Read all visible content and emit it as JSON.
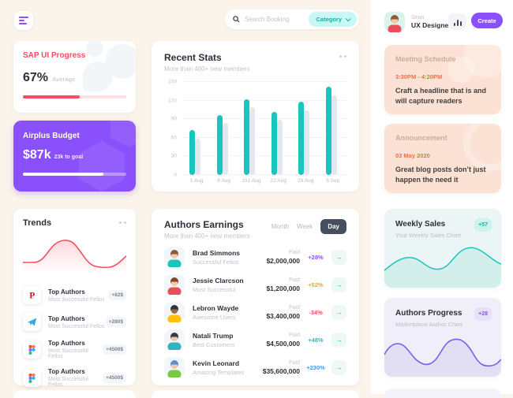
{
  "header": {
    "search": {
      "placeholder": "Search Booking",
      "category_label": "Category"
    },
    "profile": {
      "name": "Sean",
      "role": "UX Designer"
    },
    "create_label": "Create"
  },
  "cards": {
    "sap": {
      "title": "SAP UI Progress",
      "value": "67%",
      "label": "Average",
      "progress_pct": 55,
      "accent": "#f64e60"
    },
    "budget": {
      "title": "Airplus Budget",
      "value": "$87k",
      "label": "23k to goal",
      "progress_pct": 78,
      "accent": "#8950fc"
    }
  },
  "recent": {
    "title": "Recent Stats",
    "subtitle": "More than 400+ new members"
  },
  "chart_data": [
    {
      "type": "bar",
      "title": "Recent Stats",
      "categories": [
        "1 Aug",
        "8 Aug",
        "151 Aug",
        "22 Aug",
        "29 Aug",
        "5 Sep"
      ],
      "series": [
        {
          "name": "current",
          "color": "#1bc5bd",
          "values": [
            72,
            96,
            122,
            102,
            118,
            142
          ]
        },
        {
          "name": "previous",
          "color": "#e5e7ee",
          "values": [
            58,
            84,
            109,
            89,
            104,
            128
          ]
        }
      ],
      "ylim": [
        0,
        150
      ],
      "yticks": [
        0,
        30,
        60,
        90,
        120,
        150
      ],
      "grid": true,
      "legend": false
    },
    {
      "type": "line",
      "title": "Trends",
      "color": "#f64e60",
      "values_norm": [
        30,
        30,
        38,
        62,
        78,
        80,
        66,
        42,
        22,
        18,
        20,
        26,
        40
      ]
    },
    {
      "type": "area",
      "title": "Weekly Sales",
      "color": "#1bc5bd",
      "badge": "+57",
      "values_norm": [
        35,
        48,
        58,
        52,
        40,
        38,
        55,
        75,
        82,
        72,
        58,
        52
      ]
    },
    {
      "type": "area",
      "title": "Authors Progress",
      "color": "#6f63e8",
      "badge": "+28",
      "values_norm": [
        55,
        75,
        72,
        45,
        28,
        30,
        62,
        85,
        82,
        48,
        25,
        30,
        42
      ]
    }
  ],
  "trends": {
    "title": "Trends",
    "items": [
      {
        "icon": "pinterest",
        "title": "Top Authors",
        "desc": "Most Successful Fellos",
        "value": "+82$"
      },
      {
        "icon": "telegram",
        "title": "Top Authors",
        "desc": "Most Successful Fellos",
        "value": "+280$"
      },
      {
        "icon": "figma",
        "title": "Top Authors",
        "desc": "Most Successful Fellos",
        "value": "+4500$"
      },
      {
        "icon": "figma",
        "title": "Top Authors",
        "desc": "Most Successful Fellos",
        "value": "+4500$"
      }
    ]
  },
  "earnings": {
    "title": "Authors Earnings",
    "subtitle": "More than 400+ new members",
    "tabs": [
      "Month",
      "Week",
      "Day"
    ],
    "active_tab": "Day",
    "paid_label": "Paid",
    "rows": [
      {
        "name": "Brad Simmons",
        "desc": "Successful Fellos",
        "paid": "$2,000,000",
        "change": "+28%",
        "change_color": "#8950fc",
        "avatar": {
          "skin": "#f2c9a3",
          "hair": "#8a5a3b",
          "shirt": "#1bc5bd",
          "bg": "#f3f6f9"
        }
      },
      {
        "name": "Jessie Clarcson",
        "desc": "Most Successful",
        "paid": "$1,200,000",
        "change": "+52%",
        "change_color": "#ffa800",
        "avatar": {
          "skin": "#f2c9a3",
          "hair": "#7b4a2d",
          "shirt": "#e8505b",
          "bg": "#f3f6f9"
        }
      },
      {
        "name": "Lebron Wayde",
        "desc": "Awesome Users",
        "paid": "$3,400,000",
        "change": "-34%",
        "change_color": "#f64e60",
        "avatar": {
          "skin": "#9c6b45",
          "hair": "#33333f",
          "shirt": "#ffc107",
          "bg": "#f3f6f9"
        }
      },
      {
        "name": "Natali Trump",
        "desc": "Best Customers",
        "paid": "$4,500,000",
        "change": "+48%",
        "change_color": "#1bc5bd",
        "avatar": {
          "skin": "#f2c9a3",
          "hair": "#3b3b4f",
          "shirt": "#2fb5c0",
          "bg": "#f3f6f9"
        }
      },
      {
        "name": "Kevin Leonard",
        "desc": "Amazing Templates",
        "paid": "$35,600,000",
        "change": "+230%",
        "change_color": "#3699ff",
        "avatar": {
          "skin": "#f2c9a3",
          "hair": "#5a8fd6",
          "shirt": "#7ac943",
          "bg": "#f3f6f9"
        }
      }
    ]
  },
  "sidebar": {
    "meeting": {
      "title": "Meeting Schedule",
      "time": "3:30PM - 4:20PM",
      "text": "Craft a headline that is  and will capture readers"
    },
    "announcement": {
      "title": "Announcement",
      "date": "03 May 2020",
      "text": "Great blog posts don’t just happen the need it"
    },
    "weekly": {
      "title": "Weekly Sales",
      "subtitle": "Your Weekly Sales Chart",
      "badge": "+57"
    },
    "progress": {
      "title": "Authors Progress",
      "subtitle": "Marketplace Author Chart",
      "badge": "+28"
    }
  },
  "header_avatar": {
    "skin": "#f2c9a3",
    "hair": "#8a5a3b",
    "shirt": "#e8505b",
    "bg": "#d9f3ef"
  }
}
